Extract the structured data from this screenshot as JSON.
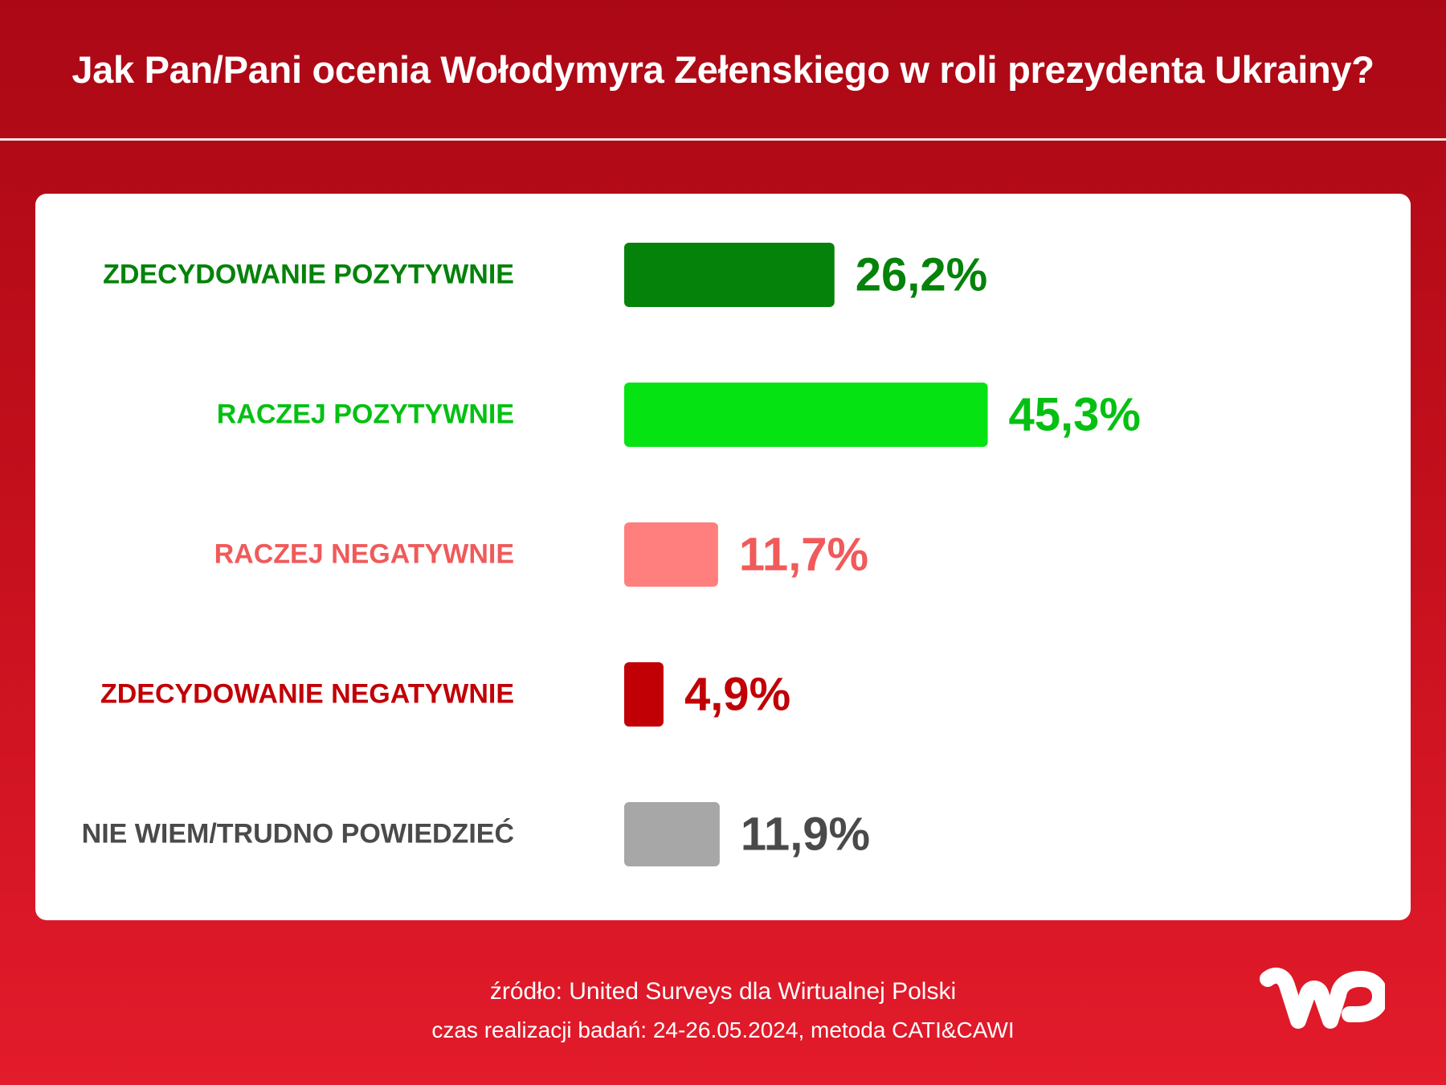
{
  "header": {
    "title": "Jak Pan/Pani ocenia Wołodymyra Zełenskiego w roli prezydenta Ukrainy?"
  },
  "chart_data": {
    "type": "bar",
    "orientation": "horizontal",
    "categories": [
      "ZDECYDOWANIE POZYTYWNIE",
      "RACZEJ POZYTYWNIE",
      "RACZEJ NEGATYWNIE",
      "ZDECYDOWANIE NEGATYWNIE",
      "NIE WIEM/TRUDNO POWIEDZIEĆ"
    ],
    "values": [
      26.2,
      45.3,
      11.7,
      4.9,
      11.9
    ],
    "value_labels": [
      "26,2%",
      "45,3%",
      "11,7%",
      "4,9%",
      "11,9%"
    ],
    "bar_colors": [
      "#05820a",
      "#05e412",
      "#ff7f7f",
      "#c10006",
      "#a7a7a7"
    ],
    "label_colors": [
      "#05820a",
      "#05c012",
      "#f05a5a",
      "#c10006",
      "#4a4a4a"
    ],
    "unit": "%",
    "grid": false,
    "legend": "none"
  },
  "footer": {
    "source": "źródło: United Surveys dla Wirtualnej Polski",
    "meta": "czas realizacji badań: 24-26.05.2024, metoda CATI&CAWI"
  },
  "logo": {
    "icon": "wp-logo-icon",
    "text": "WP",
    "color": "#ffffff"
  }
}
